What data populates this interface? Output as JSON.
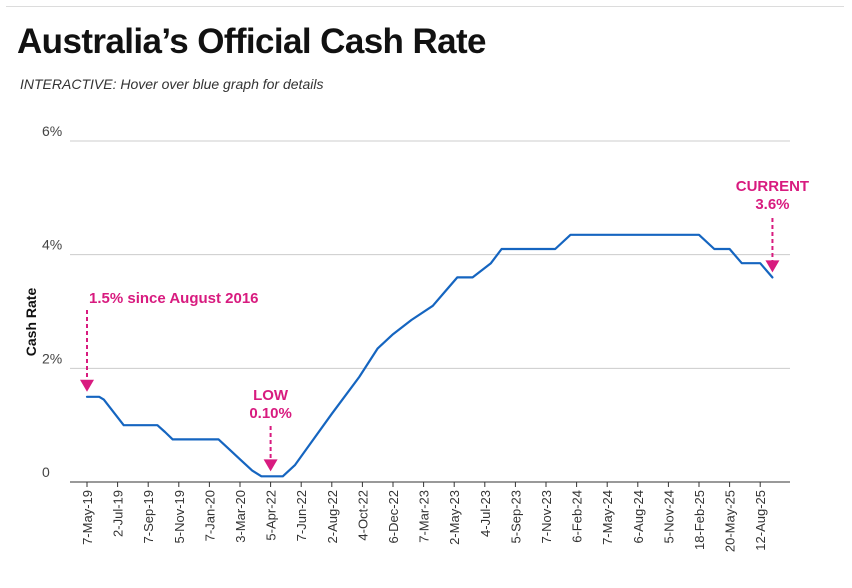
{
  "header": {
    "title": "Australia’s Official Cash Rate",
    "subtitle": "INTERACTIVE: Hover over blue graph for details"
  },
  "colors": {
    "line": "#1565c0",
    "annotation": "#d81b7f",
    "grid": "#cccccc",
    "axis": "#333333"
  },
  "chart_data": {
    "type": "line",
    "title": "Australia’s Official Cash Rate",
    "xlabel": "",
    "ylabel": "Cash Rate",
    "ylim": [
      0,
      6
    ],
    "yticks": [
      0,
      2,
      4,
      6
    ],
    "ytick_labels": [
      "0",
      "2%",
      "4%",
      "6%"
    ],
    "grid": true,
    "x_ticks": [
      "7-May-19",
      "2-Jul-19",
      "7-Sep-19",
      "5-Nov-19",
      "7-Jan-20",
      "3-Mar-20",
      "5-Apr-22",
      "7-Jun-22",
      "2-Aug-22",
      "4-Oct-22",
      "6-Dec-22",
      "7-Mar-23",
      "2-May-23",
      "4-Jul-23",
      "5-Sep-23",
      "7-Nov-23",
      "6-Feb-24",
      "7-May-24",
      "6-Aug-24",
      "5-Nov-24",
      "18-Feb-25",
      "20-May-25",
      "12-Aug-25"
    ],
    "series": [
      {
        "name": "Cash Rate",
        "points": [
          {
            "x": 0.0,
            "y": 1.5
          },
          {
            "x": 0.4,
            "y": 1.5
          },
          {
            "x": 0.55,
            "y": 1.45
          },
          {
            "x": 1.2,
            "y": 1.0
          },
          {
            "x": 2.3,
            "y": 1.0
          },
          {
            "x": 2.55,
            "y": 0.88
          },
          {
            "x": 2.8,
            "y": 0.75
          },
          {
            "x": 4.3,
            "y": 0.75
          },
          {
            "x": 4.6,
            "y": 0.6
          },
          {
            "x": 5.0,
            "y": 0.4
          },
          {
            "x": 5.4,
            "y": 0.2
          },
          {
            "x": 5.7,
            "y": 0.1
          },
          {
            "x": 6.4,
            "y": 0.1
          },
          {
            "x": 6.8,
            "y": 0.3
          },
          {
            "x": 7.2,
            "y": 0.6
          },
          {
            "x": 8.0,
            "y": 1.2
          },
          {
            "x": 8.9,
            "y": 1.85
          },
          {
            "x": 9.5,
            "y": 2.35
          },
          {
            "x": 10.0,
            "y": 2.6
          },
          {
            "x": 10.6,
            "y": 2.85
          },
          {
            "x": 11.3,
            "y": 3.1
          },
          {
            "x": 11.7,
            "y": 3.35
          },
          {
            "x": 12.1,
            "y": 3.6
          },
          {
            "x": 12.6,
            "y": 3.6
          },
          {
            "x": 13.2,
            "y": 3.85
          },
          {
            "x": 13.55,
            "y": 4.1
          },
          {
            "x": 15.3,
            "y": 4.1
          },
          {
            "x": 15.8,
            "y": 4.35
          },
          {
            "x": 20.0,
            "y": 4.35
          },
          {
            "x": 20.5,
            "y": 4.1
          },
          {
            "x": 21.0,
            "y": 4.1
          },
          {
            "x": 21.4,
            "y": 3.85
          },
          {
            "x": 22.0,
            "y": 3.85
          },
          {
            "x": 22.4,
            "y": 3.6
          }
        ]
      }
    ],
    "annotations": [
      {
        "id": "start",
        "lines": [
          "1.5% since August 2016"
        ],
        "x": 0.0,
        "y": 1.5
      },
      {
        "id": "low",
        "lines": [
          "LOW",
          "0.10%"
        ],
        "x": 6.0,
        "y": 0.1
      },
      {
        "id": "current",
        "lines": [
          "CURRENT",
          "3.6%"
        ],
        "x": 22.4,
        "y": 3.6
      }
    ]
  }
}
